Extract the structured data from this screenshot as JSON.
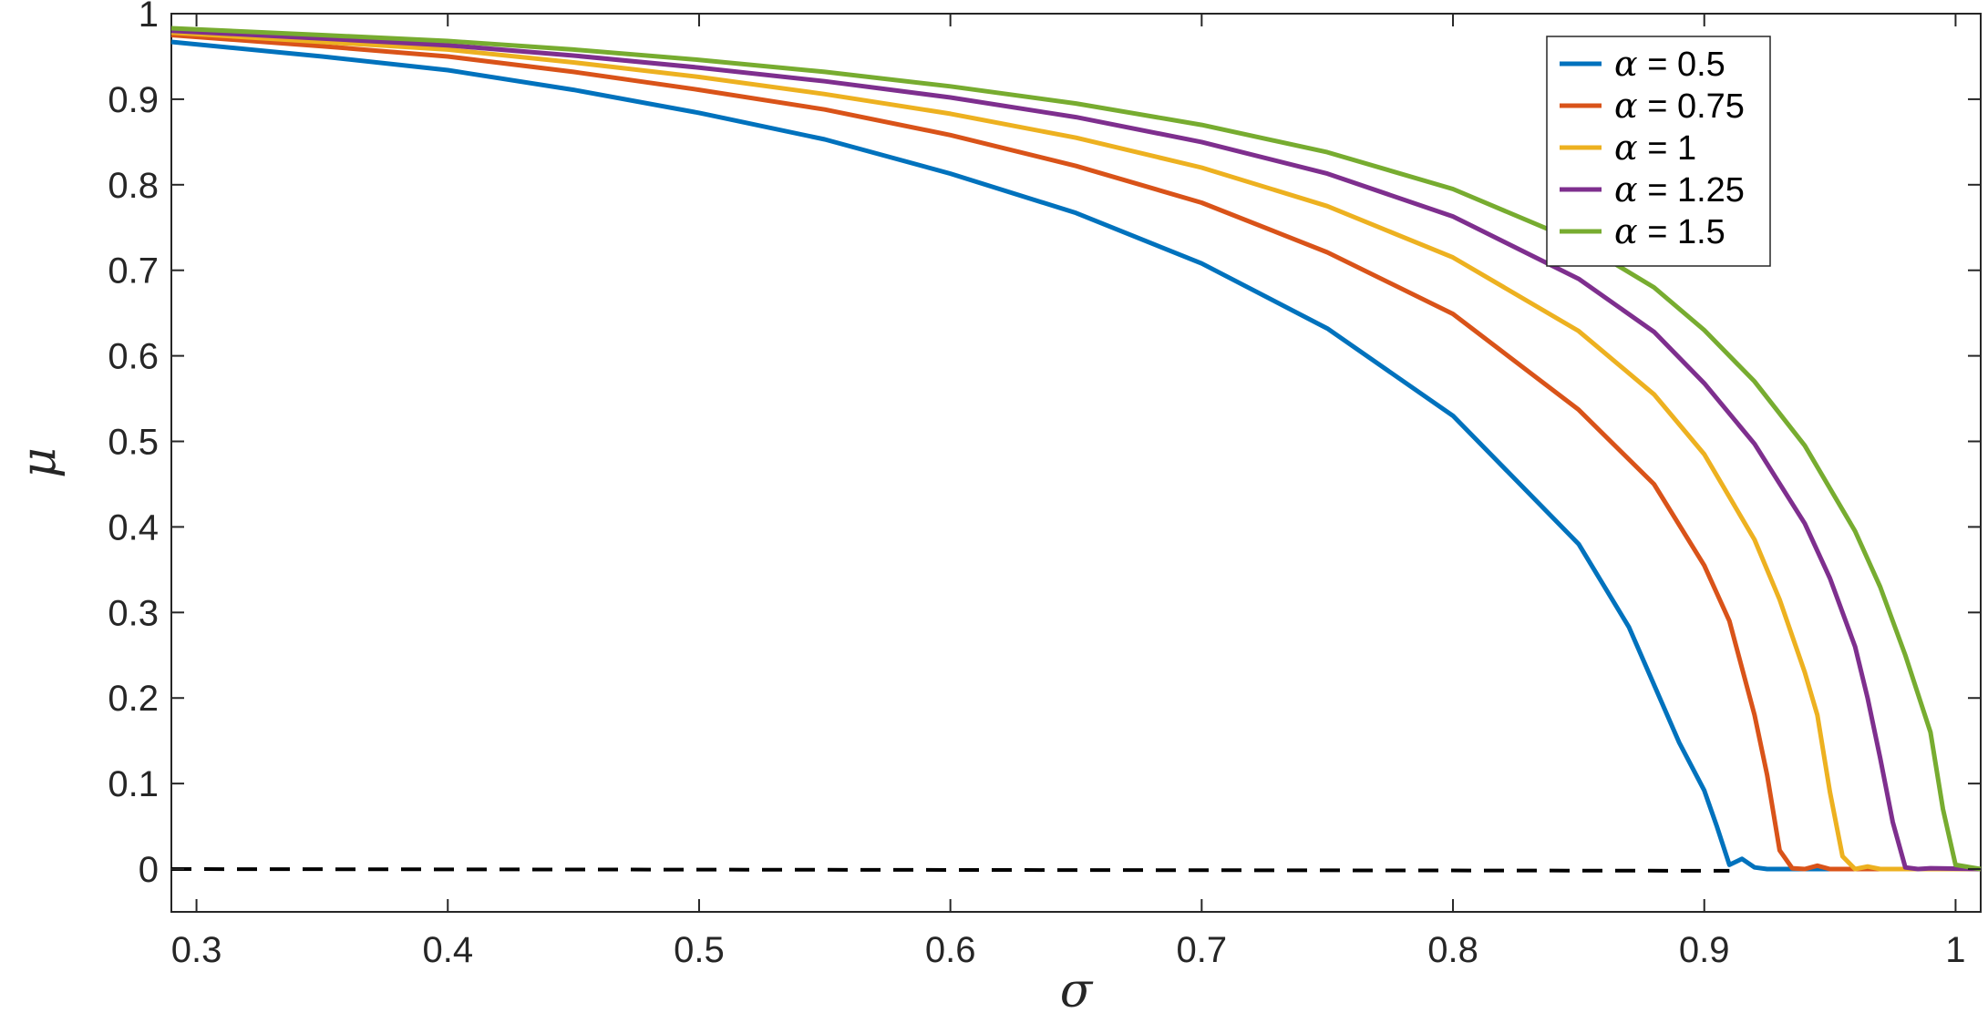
{
  "chart_data": {
    "type": "line",
    "title": "",
    "xlabel": "σ",
    "ylabel": "μ",
    "xlim": [
      0.29,
      1.01
    ],
    "ylim": [
      -0.05,
      1.0
    ],
    "xticks": [
      0.3,
      0.4,
      0.5,
      0.6,
      0.7,
      0.8,
      0.9,
      1.0
    ],
    "xtick_labels": [
      "0.3",
      "0.4",
      "0.5",
      "0.6",
      "0.7",
      "0.8",
      "0.9",
      "1"
    ],
    "yticks": [
      0,
      0.1,
      0.2,
      0.3,
      0.4,
      0.5,
      0.6,
      0.7,
      0.8,
      0.9,
      1.0
    ],
    "ytick_labels": [
      "0",
      "0.1",
      "0.2",
      "0.3",
      "0.4",
      "0.5",
      "0.6",
      "0.7",
      "0.8",
      "0.9",
      "1"
    ],
    "grid": false,
    "legend_position": "top-right",
    "series": [
      {
        "name": "α = 0.5",
        "legend_symbol": "α",
        "legend_value": "= 0.5",
        "color": "#0072bd",
        "style": "solid",
        "x": [
          0.29,
          0.35,
          0.4,
          0.45,
          0.5,
          0.55,
          0.6,
          0.65,
          0.7,
          0.75,
          0.8,
          0.85,
          0.87,
          0.89,
          0.9,
          0.905,
          0.91,
          0.915,
          0.92,
          0.925,
          0.93,
          0.95,
          1.01
        ],
        "y": [
          0.967,
          0.95,
          0.934,
          0.911,
          0.884,
          0.853,
          0.813,
          0.767,
          0.708,
          0.632,
          0.53,
          0.38,
          0.283,
          0.148,
          0.092,
          0.05,
          0.005,
          0.012,
          0.002,
          0.0,
          0.0,
          0.0,
          0.0
        ]
      },
      {
        "name": "α = 0.75",
        "legend_symbol": "α",
        "legend_value": "= 0.75",
        "color": "#d95319",
        "style": "solid",
        "x": [
          0.29,
          0.35,
          0.4,
          0.45,
          0.5,
          0.55,
          0.6,
          0.65,
          0.7,
          0.75,
          0.8,
          0.85,
          0.88,
          0.9,
          0.91,
          0.92,
          0.925,
          0.93,
          0.935,
          0.94,
          0.945,
          0.95,
          0.96,
          1.01
        ],
        "y": [
          0.975,
          0.962,
          0.95,
          0.932,
          0.911,
          0.888,
          0.858,
          0.822,
          0.779,
          0.721,
          0.649,
          0.537,
          0.45,
          0.355,
          0.29,
          0.18,
          0.11,
          0.022,
          0.001,
          0.0,
          0.004,
          0.0,
          0.0,
          0.0
        ]
      },
      {
        "name": "α = 1",
        "legend_symbol": "α",
        "legend_value": "= 1",
        "color": "#edb120",
        "style": "solid",
        "x": [
          0.29,
          0.35,
          0.4,
          0.45,
          0.5,
          0.55,
          0.6,
          0.65,
          0.7,
          0.75,
          0.8,
          0.85,
          0.88,
          0.9,
          0.92,
          0.93,
          0.94,
          0.945,
          0.95,
          0.955,
          0.96,
          0.965,
          0.97,
          1.01
        ],
        "y": [
          0.978,
          0.967,
          0.958,
          0.943,
          0.926,
          0.906,
          0.883,
          0.855,
          0.82,
          0.775,
          0.715,
          0.629,
          0.555,
          0.485,
          0.385,
          0.315,
          0.23,
          0.18,
          0.09,
          0.015,
          0.0,
          0.003,
          0.0,
          0.0
        ]
      },
      {
        "name": "α = 1.25",
        "legend_symbol": "α",
        "legend_value": "= 1.25",
        "color": "#7e2f8e",
        "style": "solid",
        "x": [
          0.29,
          0.35,
          0.4,
          0.45,
          0.5,
          0.55,
          0.6,
          0.65,
          0.7,
          0.75,
          0.8,
          0.85,
          0.88,
          0.9,
          0.92,
          0.94,
          0.95,
          0.96,
          0.965,
          0.97,
          0.975,
          0.98,
          0.985,
          0.99,
          1.01
        ],
        "y": [
          0.98,
          0.971,
          0.963,
          0.951,
          0.937,
          0.921,
          0.902,
          0.879,
          0.85,
          0.813,
          0.763,
          0.69,
          0.628,
          0.568,
          0.497,
          0.404,
          0.34,
          0.26,
          0.2,
          0.13,
          0.055,
          0.002,
          0.0,
          0.001,
          0.0
        ]
      },
      {
        "name": "α = 1.5",
        "legend_symbol": "α",
        "legend_value": "= 1.5",
        "color": "#77ac30",
        "style": "solid",
        "x": [
          0.29,
          0.35,
          0.4,
          0.45,
          0.5,
          0.55,
          0.6,
          0.65,
          0.7,
          0.75,
          0.8,
          0.85,
          0.88,
          0.9,
          0.92,
          0.94,
          0.96,
          0.97,
          0.98,
          0.99,
          0.995,
          1.0,
          1.01
        ],
        "y": [
          0.983,
          0.975,
          0.968,
          0.958,
          0.946,
          0.932,
          0.915,
          0.895,
          0.87,
          0.838,
          0.795,
          0.733,
          0.68,
          0.63,
          0.57,
          0.495,
          0.395,
          0.33,
          0.25,
          0.16,
          0.07,
          0.005,
          0.0
        ]
      },
      {
        "name": "",
        "color": "#000000",
        "style": "dashed",
        "x": [
          0.29,
          0.91
        ],
        "y": [
          0.0,
          -0.002
        ]
      }
    ]
  }
}
